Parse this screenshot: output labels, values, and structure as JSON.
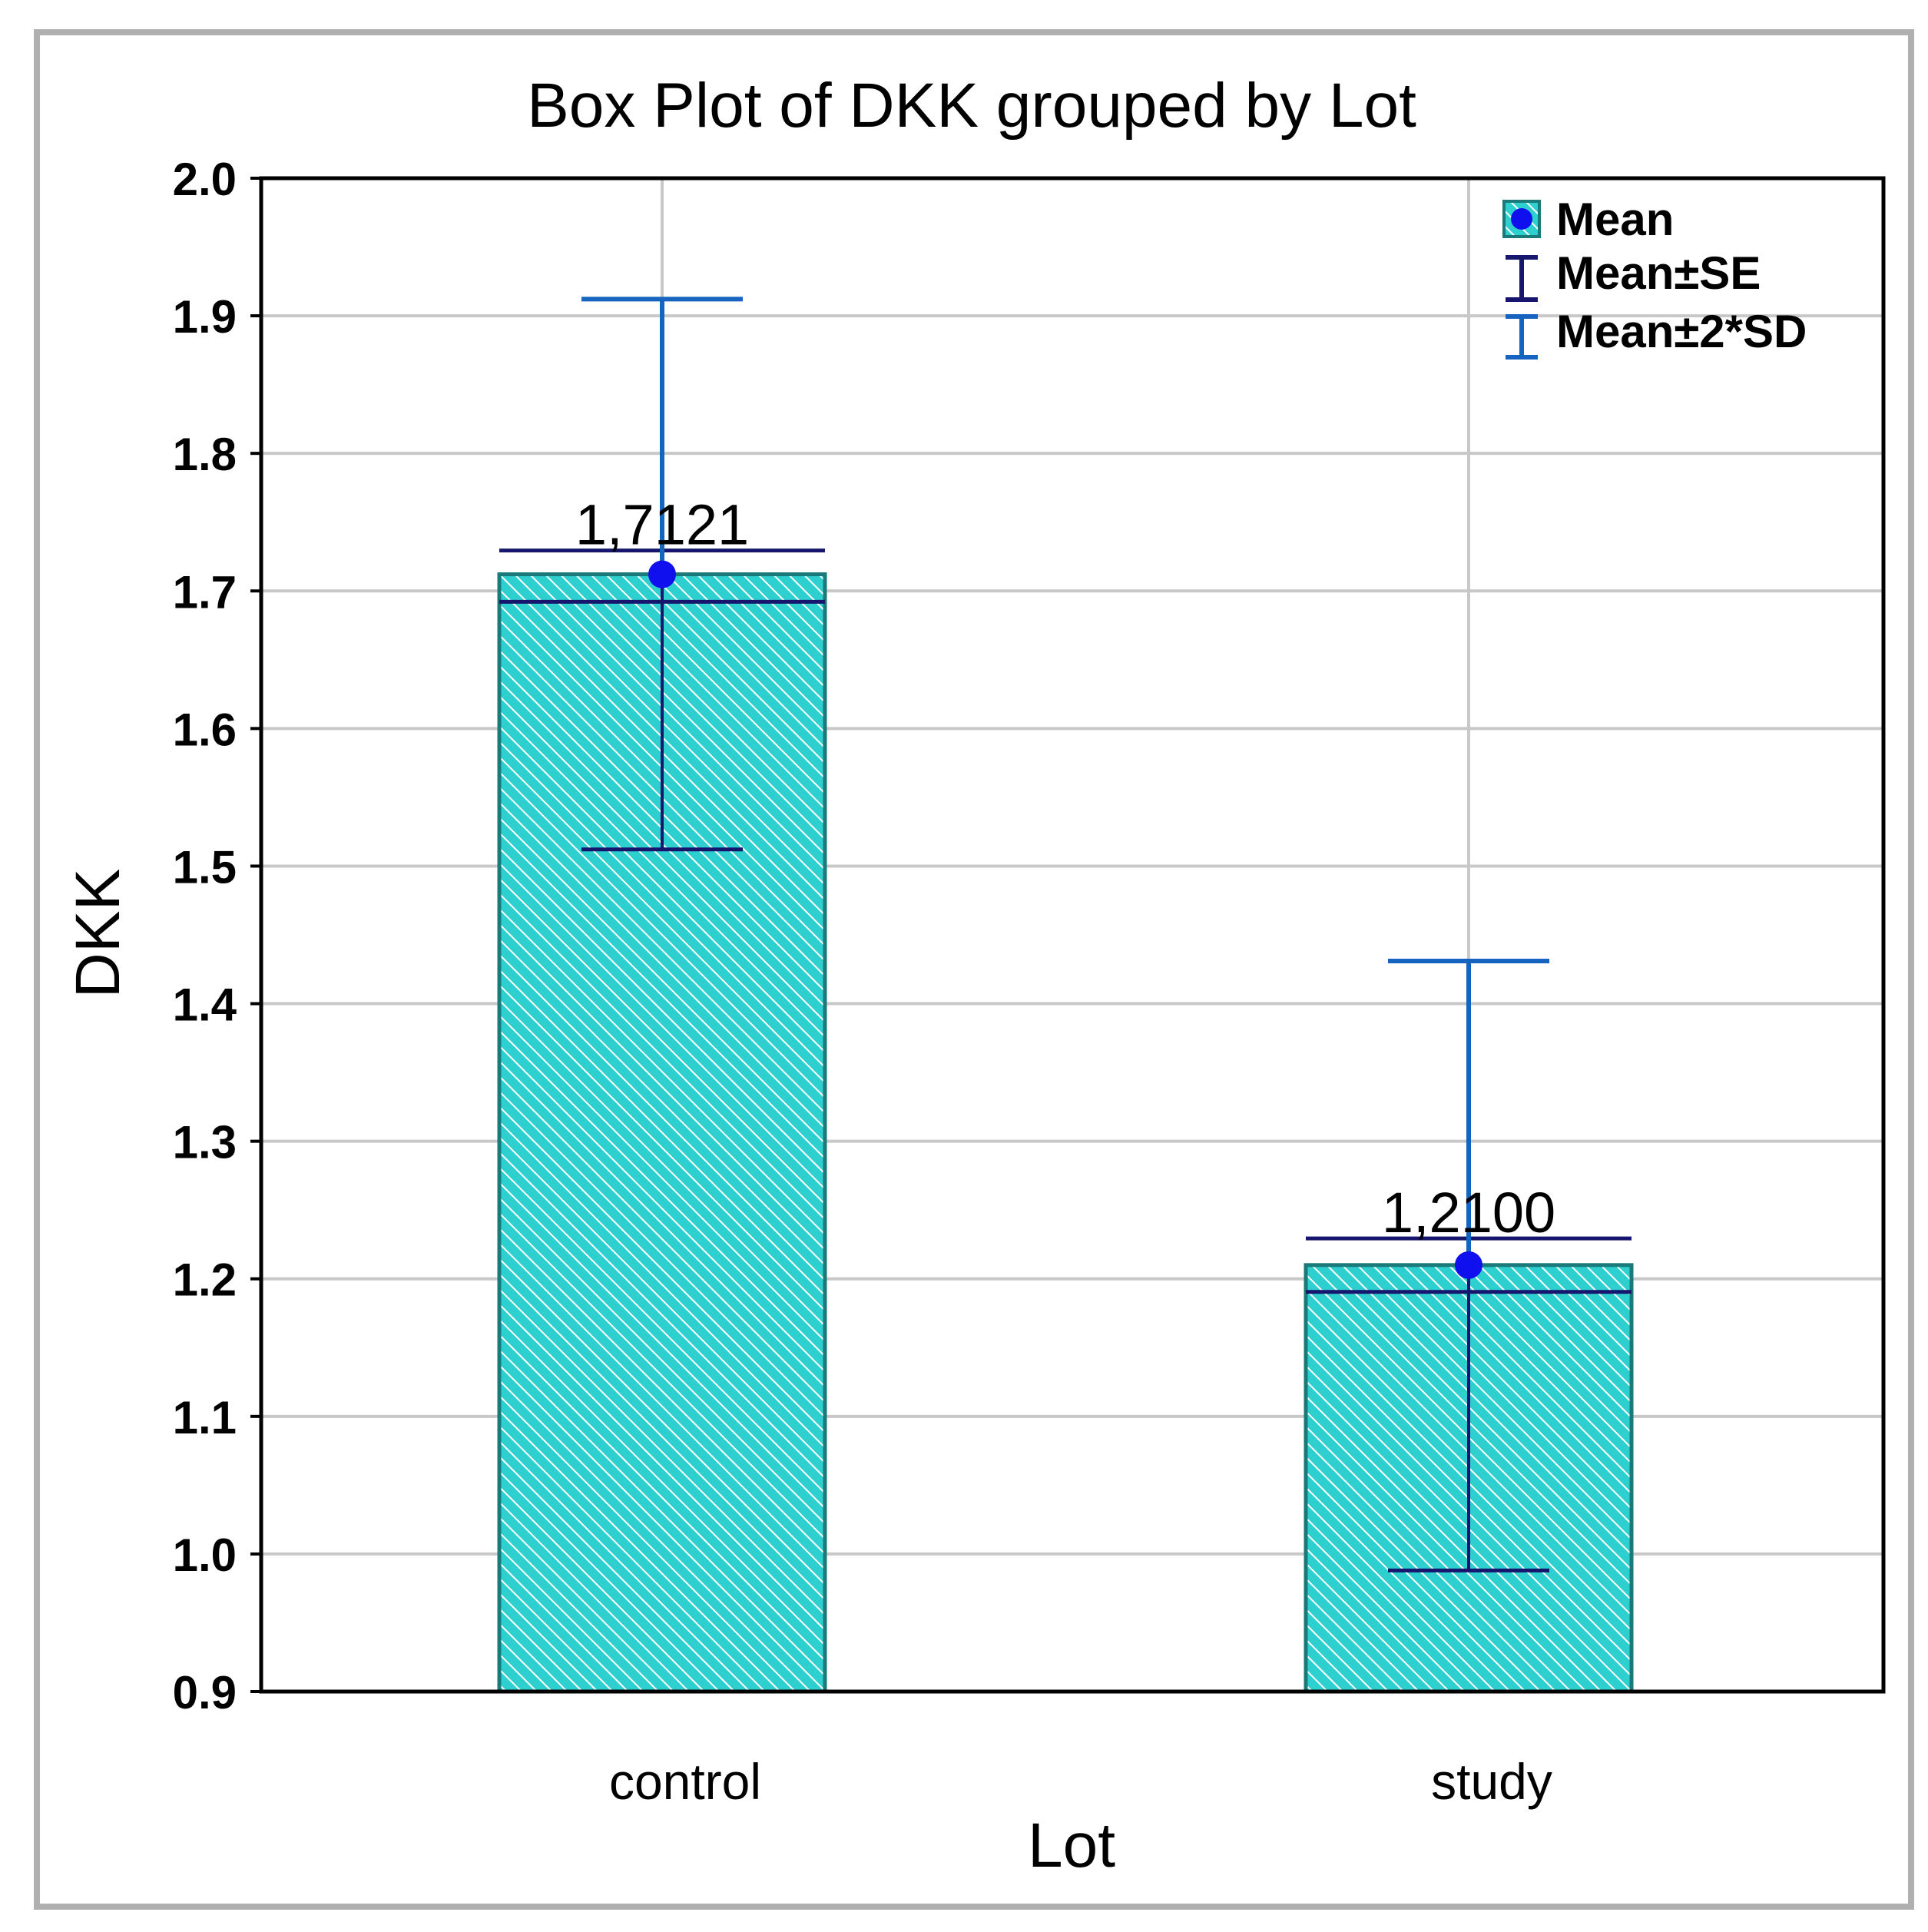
{
  "chart_data": {
    "type": "bar",
    "title": "Box Plot of DKK grouped by  Lot",
    "xlabel": "Lot",
    "ylabel": "DKK",
    "ylim": [
      0.9,
      2.0
    ],
    "yticks": [
      "0.9",
      "1.0",
      "1.1",
      "1.2",
      "1.3",
      "1.4",
      "1.5",
      "1.6",
      "1.7",
      "1.8",
      "1.9",
      "2.0"
    ],
    "grid": true,
    "legend_position": "top-right",
    "categories": [
      "control",
      "study"
    ],
    "series": [
      {
        "name": "Mean",
        "values": [
          1.7121,
          1.21
        ],
        "labels": [
          "1,7121",
          "1,2100"
        ]
      },
      {
        "name": "Mean±SE",
        "lower": [
          1.6921,
          1.1905
        ],
        "upper": [
          1.7294,
          1.2294
        ]
      },
      {
        "name": "Mean±2*SD",
        "lower": [
          1.5121,
          0.988
        ],
        "upper": [
          1.9121,
          1.431
        ]
      }
    ],
    "legend": [
      "Mean",
      "Mean±SE",
      "Mean±2*SD"
    ]
  },
  "colors": {
    "bar_fill": "#2ecfcf",
    "bar_hatch": "#ffffff",
    "bar_border": "#1a7a7a",
    "mean_marker": "#1010ee",
    "se_whisker": "#16166e",
    "sd_whisker": "#1565c0",
    "grid": "#c8c8c8",
    "axis": "#000000",
    "frame": "#b0b0b0"
  }
}
